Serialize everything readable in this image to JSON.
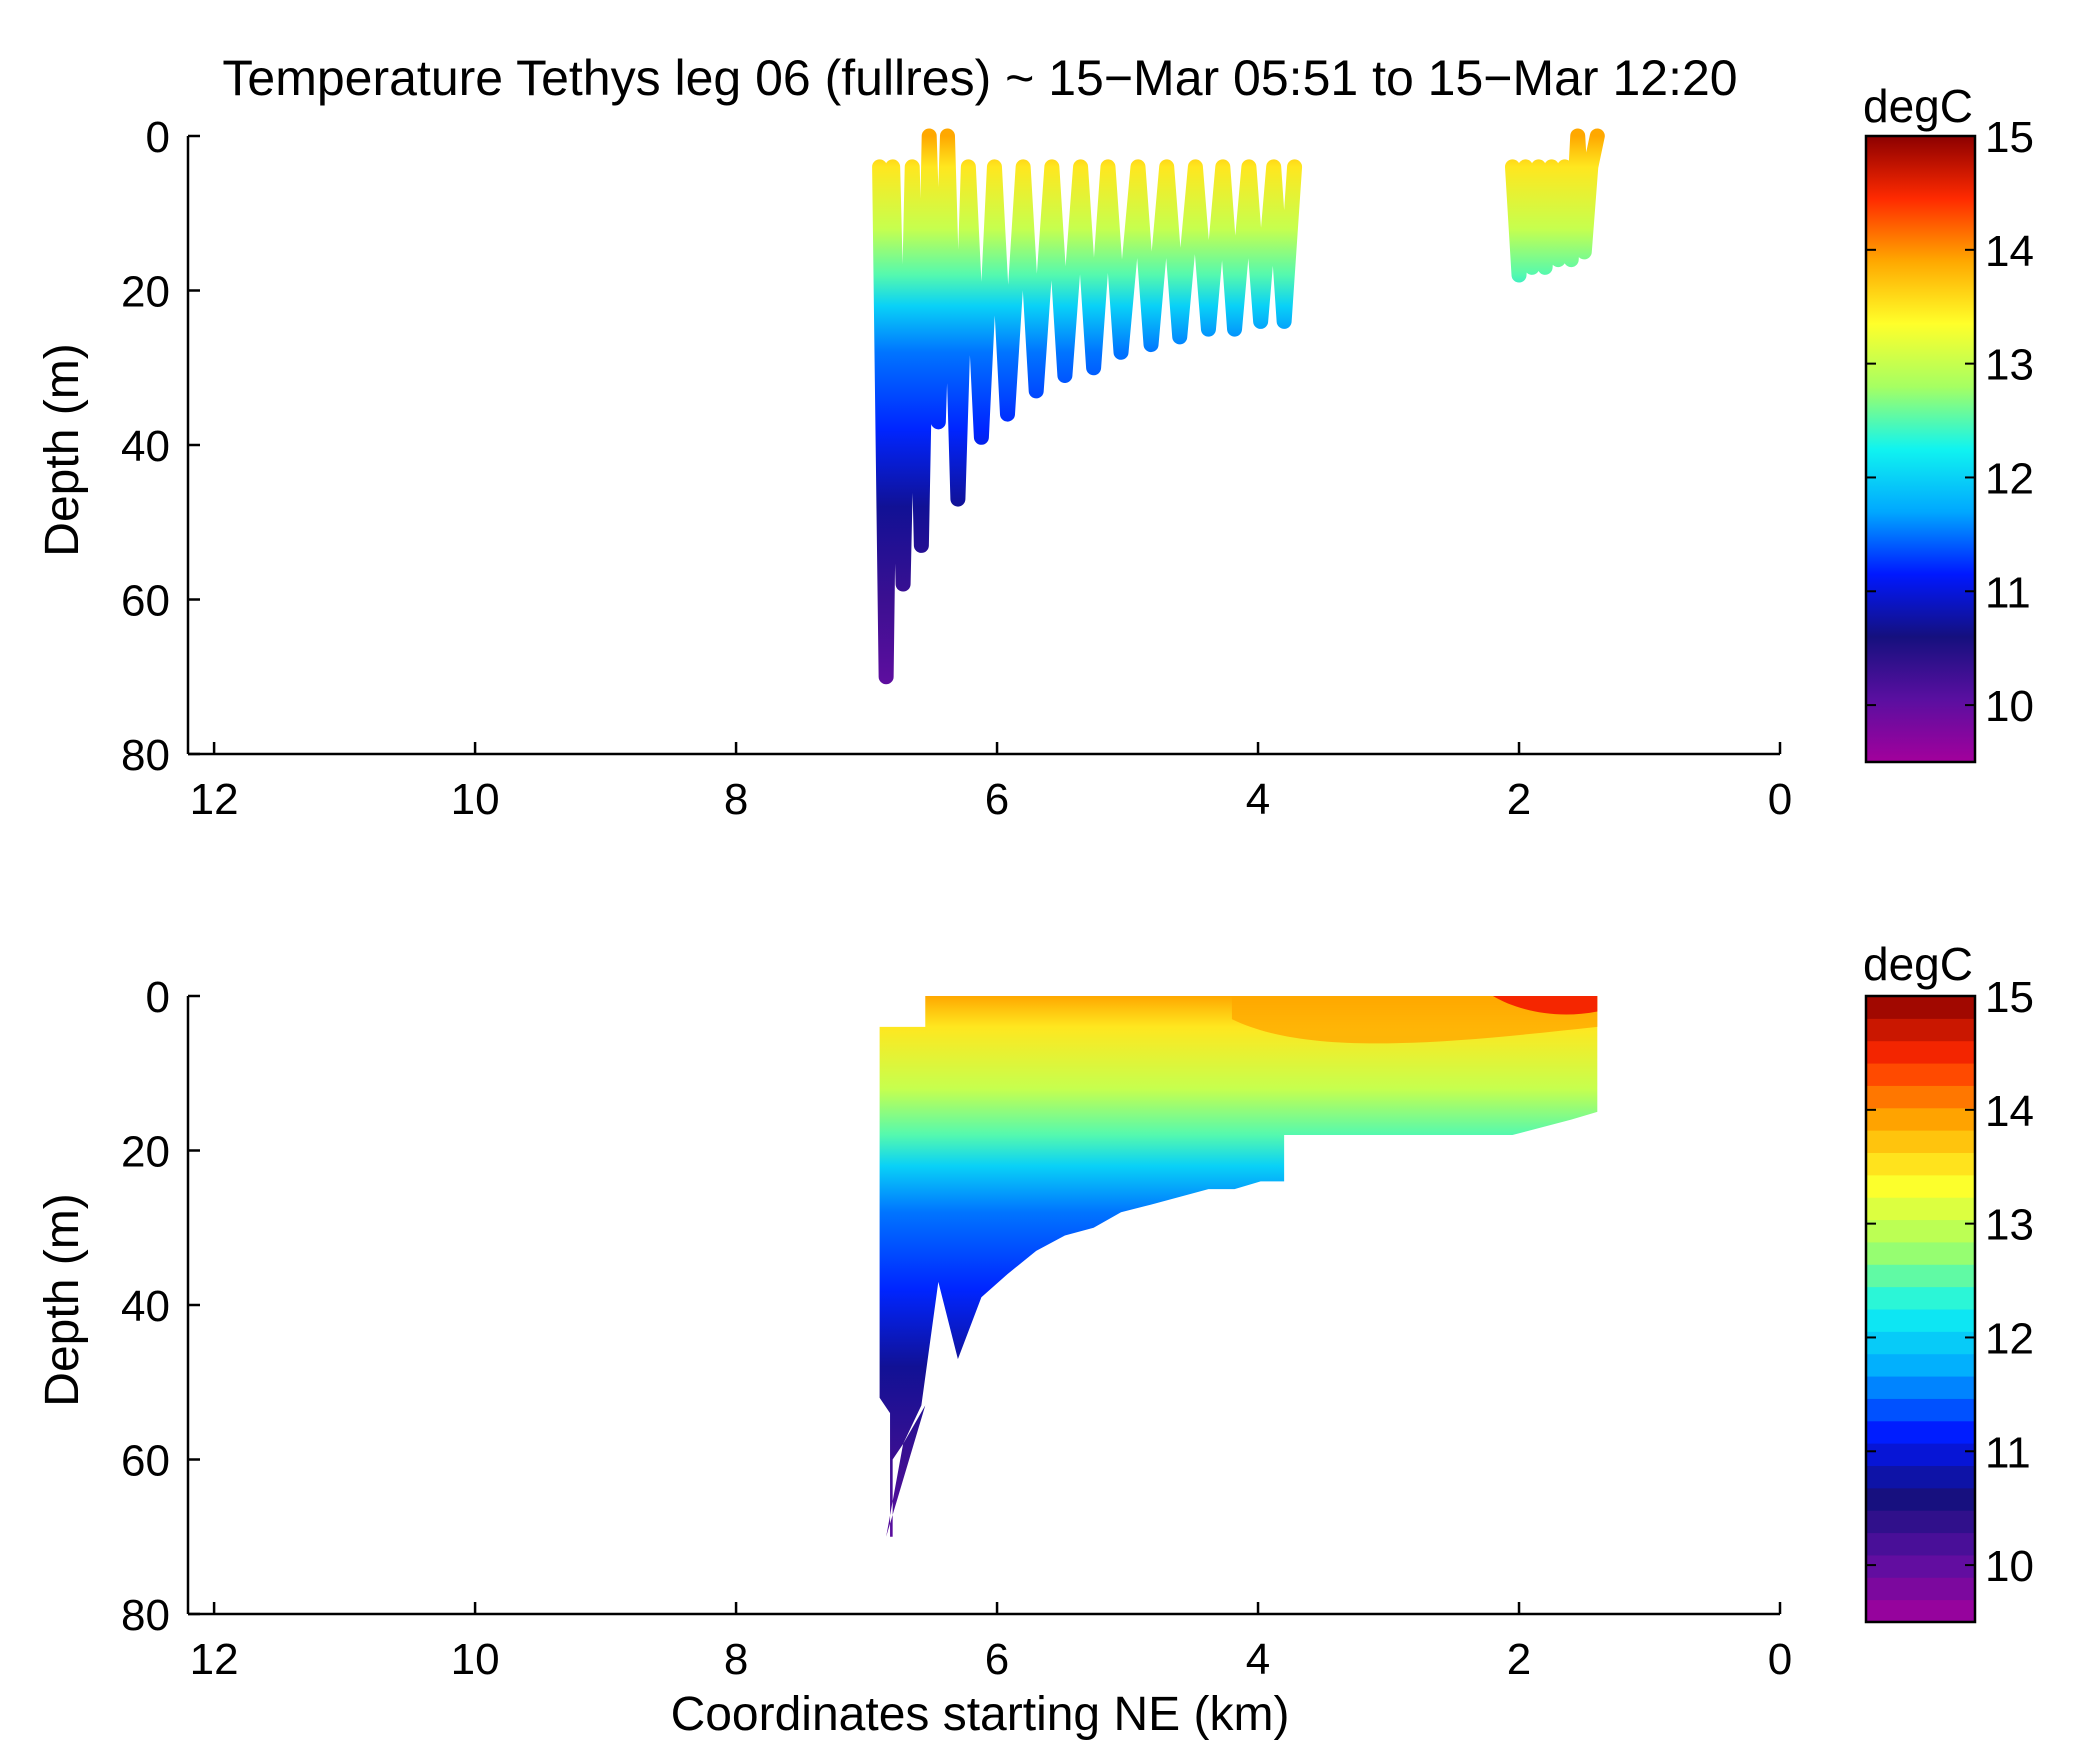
{
  "title": "Temperature Tethys leg 06 (fullres) ~ 15−Mar 05:51 to 15−Mar 12:20",
  "colorbar_units": "degC",
  "colormap": [
    "#a3009c",
    "#5a0fa0",
    "#15107e",
    "#0018ff",
    "#00a8ff",
    "#10f4f0",
    "#a6ff62",
    "#ffff2a",
    "#ffa800",
    "#ff2a00",
    "#8c0000"
  ],
  "chart_data": [
    {
      "type": "scatter",
      "description_panel": "top",
      "xlabel": "",
      "ylabel": "Depth (m)",
      "xlim": [
        12.2,
        0
      ],
      "ylim": [
        80,
        0
      ],
      "xticks": [
        12,
        10,
        8,
        6,
        4,
        2,
        0
      ],
      "yticks": [
        0,
        20,
        40,
        60,
        80
      ],
      "colorbar": {
        "label": "degC",
        "range": [
          9.5,
          15
        ],
        "ticks": [
          10,
          11,
          12,
          13,
          14,
          15
        ],
        "continuous": true
      },
      "series": [
        {
          "x": [
            6.9,
            6.85,
            6.8,
            6.72,
            6.65,
            6.58,
            6.52,
            6.45,
            6.38,
            6.3,
            6.22,
            6.12,
            6.02,
            5.92,
            5.8,
            5.7,
            5.58,
            5.48,
            5.36,
            5.26,
            5.15,
            5.05,
            4.92,
            4.82,
            4.7,
            4.6,
            4.48,
            4.38,
            4.27,
            4.18,
            4.07,
            3.98,
            3.88,
            3.8,
            3.72
          ],
          "y": [
            4,
            70,
            4,
            58,
            4,
            53,
            0,
            37,
            0,
            47,
            4,
            39,
            4,
            36,
            4,
            33,
            4,
            31,
            4,
            30,
            4,
            28,
            4,
            27,
            4,
            26,
            4,
            25,
            4,
            25,
            4,
            24,
            4,
            24,
            4
          ]
        },
        {
          "x": [
            2.05,
            2.0,
            1.95,
            1.9,
            1.85,
            1.8,
            1.75,
            1.7,
            1.65,
            1.6,
            1.55,
            1.5,
            1.45,
            1.4
          ],
          "y": [
            4,
            18,
            4,
            17,
            4,
            17,
            4,
            16,
            4,
            16,
            0,
            15,
            4,
            0
          ]
        }
      ]
    },
    {
      "type": "heatmap",
      "description_panel": "bottom",
      "xlabel": "Coordinates starting NE (km)",
      "ylabel": "Depth (m)",
      "xlim": [
        12.2,
        0
      ],
      "ylim": [
        80,
        0
      ],
      "xticks": [
        12,
        10,
        8,
        6,
        4,
        2,
        0
      ],
      "yticks": [
        0,
        20,
        40,
        60,
        80
      ],
      "colorbar": {
        "label": "degC",
        "range": [
          9.5,
          15
        ],
        "ticks": [
          10,
          11,
          12,
          13,
          14,
          15
        ],
        "continuous": false
      },
      "data_extent": {
        "x": [
          6.9,
          1.4
        ],
        "y": [
          0,
          70
        ]
      }
    }
  ]
}
